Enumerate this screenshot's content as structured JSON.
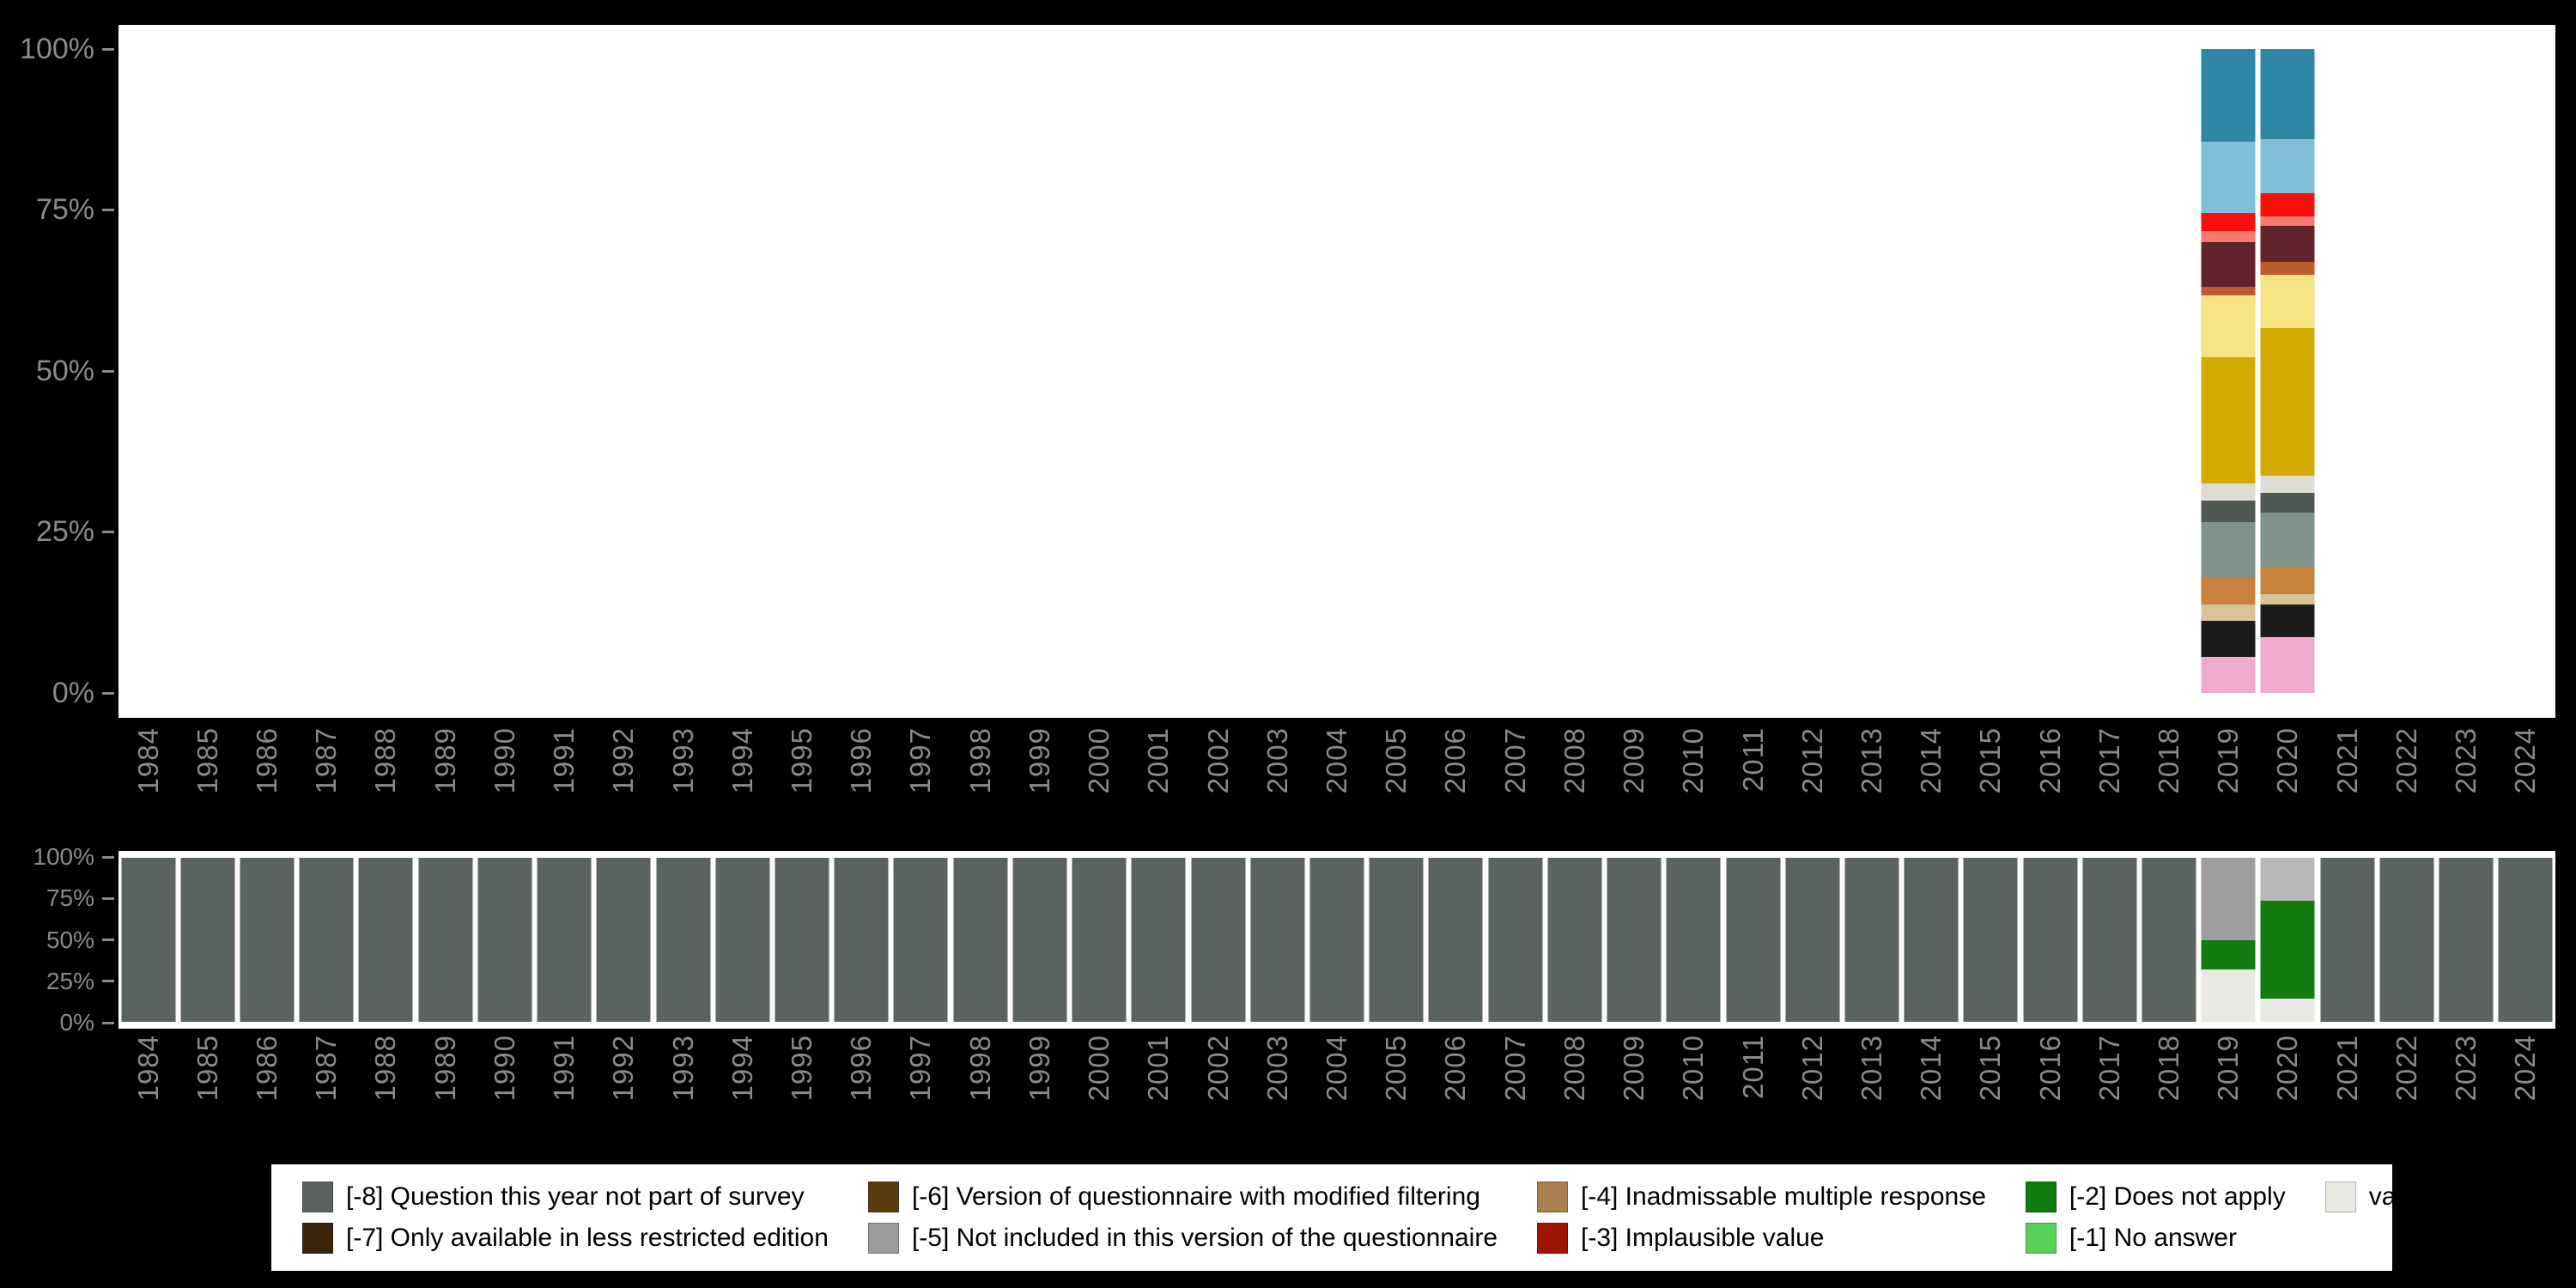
{
  "colors": {
    "background": "#000000",
    "panel": "#ffffff",
    "axis_text": "#8a8a8a",
    "legend_text": "#000000"
  },
  "chart_data": [
    {
      "type": "bar",
      "stacked": true,
      "name": "valid-responses-distribution-by-year",
      "title": "",
      "xlabel": "",
      "ylabel": "",
      "ylim": [
        0,
        100
      ],
      "ytick_labels": [
        "100%",
        "75%",
        "50%",
        "25%",
        "0%"
      ],
      "grid": false,
      "legend_position": "none",
      "categories": [
        "1984",
        "1985",
        "1986",
        "1987",
        "1988",
        "1989",
        "1990",
        "1991",
        "1992",
        "1993",
        "1994",
        "1995",
        "1996",
        "1997",
        "1998",
        "1999",
        "2000",
        "2001",
        "2002",
        "2003",
        "2004",
        "2005",
        "2006",
        "2007",
        "2008",
        "2009",
        "2010",
        "2011",
        "2012",
        "2013",
        "2014",
        "2015",
        "2016",
        "2017",
        "2018",
        "2019",
        "2020",
        "2021",
        "2022",
        "2023",
        "2024"
      ],
      "note": "segments listed top-to-bottom, values in percent; only 2019 and 2020 contain data",
      "bars": {
        "2019": [
          {
            "color": "#2d87a5",
            "value": 14.4
          },
          {
            "color": "#7fc0d8",
            "value": 11.0
          },
          {
            "color": "#fb0f0c",
            "value": 2.8
          },
          {
            "color": "#f27a72",
            "value": 1.8
          },
          {
            "color": "#61242a",
            "value": 6.9
          },
          {
            "color": "#bc5b2e",
            "value": 1.3
          },
          {
            "color": "#f6e382",
            "value": 9.7
          },
          {
            "color": "#d2ab00",
            "value": 19.6
          },
          {
            "color": "#dedcd4",
            "value": 2.6
          },
          {
            "color": "#4f5a55",
            "value": 3.3
          },
          {
            "color": "#7e938c",
            "value": 8.7
          },
          {
            "color": "#c8823c",
            "value": 4.1
          },
          {
            "color": "#d9c49a",
            "value": 2.6
          },
          {
            "color": "#1c1c1c",
            "value": 5.6
          },
          {
            "color": "#efaad2",
            "value": 5.6
          }
        ],
        "2020": [
          {
            "color": "#2d87a5",
            "value": 14.0
          },
          {
            "color": "#7fc0d8",
            "value": 8.4
          },
          {
            "color": "#fb0f0c",
            "value": 3.6
          },
          {
            "color": "#f27a72",
            "value": 1.5
          },
          {
            "color": "#61242a",
            "value": 5.6
          },
          {
            "color": "#bc5b2e",
            "value": 2.0
          },
          {
            "color": "#f6e382",
            "value": 8.2
          },
          {
            "color": "#d2ab00",
            "value": 23.0
          },
          {
            "color": "#dedcd4",
            "value": 2.6
          },
          {
            "color": "#4f5a55",
            "value": 3.1
          },
          {
            "color": "#7e938c",
            "value": 8.4
          },
          {
            "color": "#c8823c",
            "value": 4.3
          },
          {
            "color": "#d9c49a",
            "value": 1.5
          },
          {
            "color": "#1c1c1c",
            "value": 5.1
          },
          {
            "color": "#efaad2",
            "value": 8.7
          }
        ]
      }
    },
    {
      "type": "bar",
      "stacked": true,
      "name": "missing-values-overview-by-year",
      "title": "",
      "xlabel": "",
      "ylabel": "",
      "ylim": [
        0,
        100
      ],
      "ytick_labels": [
        "100%",
        "75%",
        "50%",
        "25%",
        "0%"
      ],
      "grid": false,
      "legend_position": "bottom",
      "categories_same_as_first": true,
      "default_stack": [
        {
          "color": "#5a635e",
          "value": 100,
          "label": "[-8] Question this year not part of survey"
        }
      ],
      "bars": {
        "2019": [
          {
            "color": "#9e9e9e",
            "value": 50,
            "label": "[-5] Not included in this version of the questionnaire"
          },
          {
            "color": "#117a11",
            "value": 18,
            "label": "[-2] Does not apply"
          },
          {
            "color": "#e9e9e4",
            "value": 32,
            "label": "valid cases"
          }
        ],
        "2020": [
          {
            "color": "#b8b8b8",
            "value": 26,
            "label": "[-5] Not included in this version of the questionnaire"
          },
          {
            "color": "#117a11",
            "value": 60,
            "label": "[-2] Does not apply"
          },
          {
            "color": "#e9e9e4",
            "value": 14,
            "label": "valid cases"
          }
        ]
      }
    }
  ],
  "legend": {
    "items": [
      {
        "color": "#5a635e",
        "label": "[-8] Question this year not part of survey"
      },
      {
        "color": "#3a250c",
        "label": "[-7] Only available in less restricted edition"
      },
      {
        "color": "#5b3c11",
        "label": "[-6] Version of questionnaire with modified filtering"
      },
      {
        "color": "#9b9b9b",
        "label": "[-5] Not included in this version of the questionnaire"
      },
      {
        "color": "#aa8050",
        "label": "[-4] Inadmissable multiple response"
      },
      {
        "color": "#9e1508",
        "label": "[-3] Implausible value"
      },
      {
        "color": "#117a11",
        "label": "[-2] Does not apply"
      },
      {
        "color": "#58d058",
        "label": "[-1] No answer"
      },
      {
        "color": "#e9e9e4",
        "label": "valid cases"
      }
    ]
  }
}
